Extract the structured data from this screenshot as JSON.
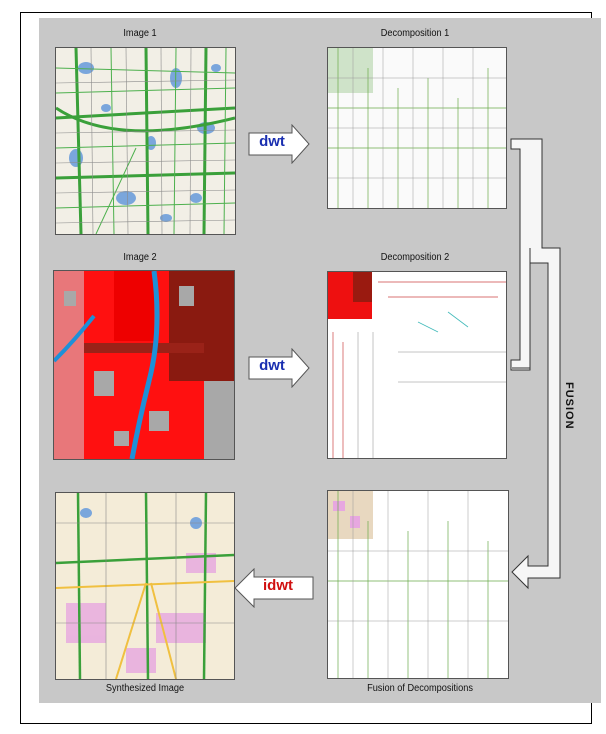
{
  "captions": {
    "image1": "Image 1",
    "decomp1": "Decomposition 1",
    "image2": "Image 2",
    "decomp2": "Decomposition 2",
    "synth": "Synthesized Image",
    "fusion_of": "Fusion of Decompositions"
  },
  "arrows": {
    "dwt1": "dwt",
    "dwt2": "dwt",
    "idwt": "idwt"
  },
  "fusion_label": "FUSION",
  "colors": {
    "panel": "#c8c8c8",
    "dwt_text": "#1a2fb0",
    "idwt_text": "#d01010",
    "map_green": "#3aa03a",
    "map_blue": "#6f9ad8",
    "sat_red": "#ff1010",
    "sat_dark": "#8a1a10"
  }
}
